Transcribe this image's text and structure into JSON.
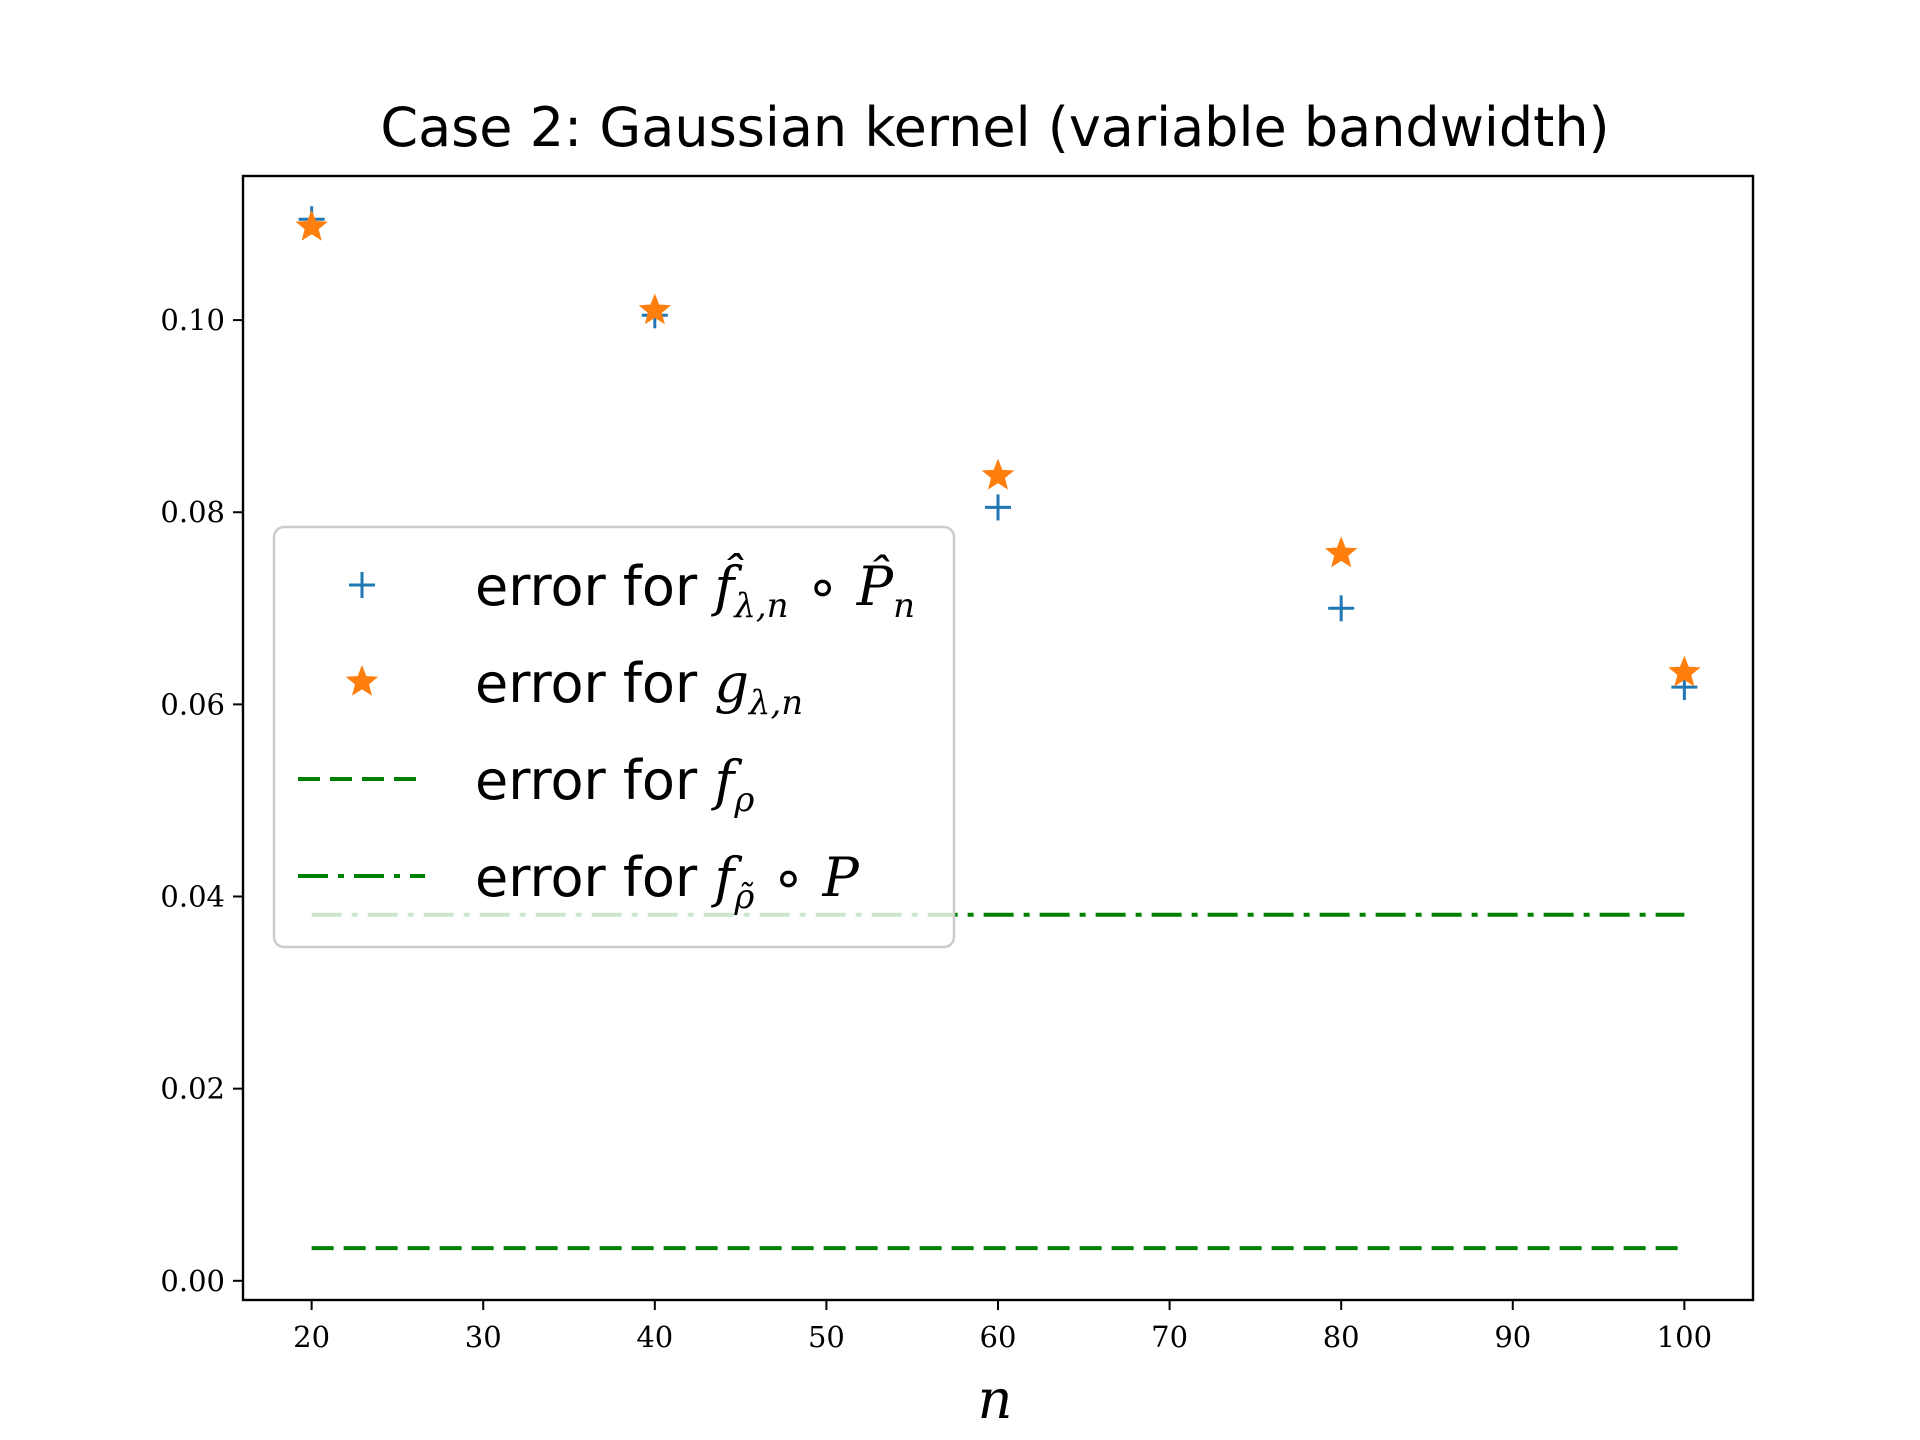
{
  "chart_data": {
    "type": "scatter",
    "title": "Case 2: Gaussian kernel (variable bandwidth)",
    "xlabel": "n",
    "ylabel": "",
    "xlim": [
      16,
      104
    ],
    "ylim": [
      -0.002,
      0.115
    ],
    "xticks": [
      "20",
      "30",
      "40",
      "50",
      "60",
      "70",
      "80",
      "90",
      "100"
    ],
    "yticks": [
      "0.00",
      "0.02",
      "0.04",
      "0.06",
      "0.08",
      "0.10"
    ],
    "grid": false,
    "legend_position": "center-left",
    "series": [
      {
        "name": "error for f̂λ,n ∘ P̂n",
        "marker": "plus",
        "color": "#1f77b4",
        "x": [
          20,
          40,
          60,
          80,
          100
        ],
        "y": [
          0.1105,
          0.1005,
          0.0805,
          0.07,
          0.0618
        ]
      },
      {
        "name": "error for gλ,n",
        "marker": "star",
        "color": "#ff7f0e",
        "x": [
          20,
          40,
          60,
          80,
          100
        ],
        "y": [
          0.1097,
          0.101,
          0.0838,
          0.0757,
          0.0633
        ]
      },
      {
        "name": "error for fρ",
        "marker": "dashed-line",
        "color": "#008000",
        "x": [
          20,
          100
        ],
        "y": [
          0.0034,
          0.0034
        ]
      },
      {
        "name": "error for fρ̃ ∘ P",
        "marker": "dashdot-line",
        "color": "#008000",
        "x": [
          20,
          100
        ],
        "y": [
          0.0381,
          0.0381
        ]
      }
    ],
    "legend": {
      "prefix": "error for",
      "items": [
        {
          "main": "f̂",
          "sub": "λ,n",
          "rest": " ∘ ",
          "main2": "P̂",
          "sub2": "n"
        },
        {
          "main": "g",
          "sub": "λ,n",
          "rest": "",
          "main2": "",
          "sub2": ""
        },
        {
          "main": "f",
          "sub": "ρ",
          "rest": "",
          "main2": "",
          "sub2": ""
        },
        {
          "main": "f",
          "sub": "ρ̃",
          "rest": " ∘ ",
          "main2": "P",
          "sub2": ""
        }
      ]
    }
  }
}
